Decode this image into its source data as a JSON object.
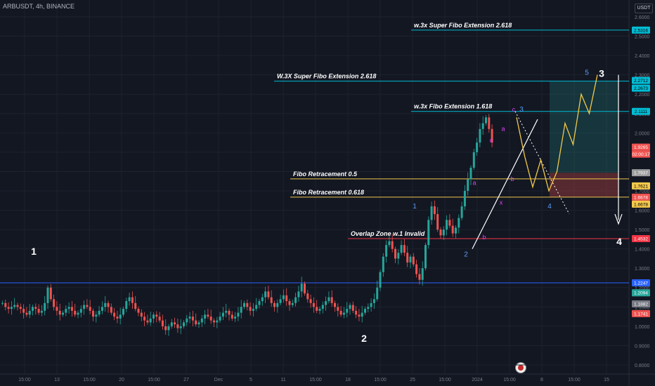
{
  "header": {
    "symbol": "ARBUSDT, 4h, BINANCE",
    "currency": "USDT"
  },
  "colors": {
    "background": "#131722",
    "up": "#26a69a",
    "down": "#ef5350",
    "grid": "#1e222d",
    "axis_text": "#787b86",
    "wave_label": "#5b9cf6",
    "sub_wave": "#e040fb",
    "projection": "#f2c94c",
    "fib_line": "#00bcd4",
    "retrace_line": "#f2c94c",
    "overlap_line": "#f23645",
    "support_line": "#2962ff"
  },
  "chart_data": {
    "type": "candlestick",
    "title": "",
    "xlabel": "",
    "ylabel": "",
    "ylim": [
      0.75,
      2.7
    ],
    "y_ticks": [
      "0.8000",
      "0.9000",
      "1.0000",
      "1.1000",
      "1.2000",
      "1.3000",
      "1.4000",
      "1.5000",
      "1.6000",
      "1.7000",
      "1.8000",
      "1.9000",
      "2.0000",
      "2.1000",
      "2.2000",
      "2.3000",
      "2.4000",
      "2.5000",
      "2.6000"
    ],
    "x_ticks": [
      "15:00",
      "13",
      "15:00",
      "20",
      "15:00",
      "27",
      "Dec",
      "5",
      "11",
      "15:00",
      "18",
      "15:00",
      "25",
      "15:00",
      "2024",
      "15:00",
      "8",
      "15:00",
      "15"
    ],
    "ohlc_points": [
      1.12,
      1.1,
      1.09,
      1.1,
      1.11,
      1.1,
      1.09,
      1.07,
      1.06,
      1.08,
      1.1,
      1.09,
      1.07,
      1.08,
      1.12,
      1.2,
      1.14,
      1.1,
      1.08,
      1.06,
      1.07,
      1.09,
      1.1,
      1.08,
      1.06,
      1.07,
      1.09,
      1.11,
      1.1,
      1.08,
      1.05,
      1.06,
      1.08,
      1.1,
      1.12,
      1.1,
      1.07,
      1.05,
      1.04,
      1.06,
      1.09,
      1.13,
      1.15,
      1.12,
      1.09,
      1.07,
      1.05,
      1.03,
      1.02,
      1.04,
      1.06,
      1.05,
      1.03,
      1.0,
      0.98,
      1.0,
      1.02,
      1.01,
      0.99,
      1.0,
      1.02,
      1.04,
      1.05,
      1.03,
      1.01,
      1.02,
      1.04,
      1.06,
      1.05,
      1.03,
      1.02,
      1.03,
      1.05,
      1.07,
      1.08,
      1.06,
      1.04,
      1.05,
      1.07,
      1.1,
      1.12,
      1.1,
      1.08,
      1.09,
      1.11,
      1.13,
      1.15,
      1.18,
      1.15,
      1.12,
      1.1,
      1.12,
      1.14,
      1.16,
      1.13,
      1.11,
      1.12,
      1.15,
      1.18,
      1.22,
      1.17,
      1.14,
      1.12,
      1.1,
      1.08,
      1.09,
      1.11,
      1.13,
      1.15,
      1.12,
      1.1,
      1.08,
      1.06,
      1.07,
      1.09,
      1.11,
      1.08,
      1.06,
      1.05,
      1.07,
      1.09,
      1.1,
      1.12,
      1.14,
      1.2,
      1.28,
      1.36,
      1.42,
      1.44,
      1.4,
      1.35,
      1.38,
      1.42,
      1.38,
      1.33,
      1.36,
      1.32,
      1.27,
      1.24,
      1.3,
      1.42,
      1.55,
      1.62,
      1.58,
      1.5,
      1.47,
      1.5,
      1.55,
      1.52,
      1.48,
      1.51,
      1.56,
      1.62,
      1.7,
      1.76,
      1.82,
      1.9,
      1.95,
      2.02,
      2.05,
      2.08,
      2.02,
      1.95
    ],
    "series": [
      {
        "name": "Projection",
        "points": [
          [
            0,
            2.08
          ],
          [
            1,
            1.88
          ],
          [
            2,
            1.72
          ],
          [
            3,
            1.86
          ],
          [
            4,
            1.7
          ],
          [
            5,
            1.8
          ],
          [
            6,
            2.05
          ],
          [
            7,
            1.94
          ],
          [
            8,
            2.2
          ],
          [
            9,
            2.1
          ],
          [
            10,
            2.3
          ]
        ]
      }
    ],
    "wave_labels": [
      {
        "text": "1",
        "price": 1.37
      },
      {
        "text": "2",
        "price": 0.92
      },
      {
        "text": "1",
        "price": 1.61
      },
      {
        "text": "2",
        "price": 1.36
      },
      {
        "text": "3",
        "price": 2.11
      },
      {
        "text": "4",
        "price": 1.61
      },
      {
        "text": "5",
        "price": 2.3
      },
      {
        "text": "3",
        "price": 2.29
      },
      {
        "text": "4",
        "price": 1.42
      }
    ],
    "sub_wave_labels": [
      {
        "text": "a",
        "price": 1.73
      },
      {
        "text": "b",
        "price": 1.45
      },
      {
        "text": "c",
        "price": 1.95
      },
      {
        "text": "a",
        "price": 2.01
      },
      {
        "text": "b",
        "price": 1.75
      },
      {
        "text": "c",
        "price": 2.11
      },
      {
        "text": "x",
        "price": 1.63
      }
    ],
    "horizontal_lines": [
      {
        "label": "w.3x Super Fibo Extension 2.618",
        "price": 2.5316
      },
      {
        "label": "W.3X Super Fibo Extension 2.618",
        "price": 2.2673
      },
      {
        "label": "w.3x Fibo Extension 1.618",
        "price": 2.1111
      },
      {
        "label": "Fibo Retracement 0.5",
        "price": 1.7621
      },
      {
        "label": "Fibo Retracement 0.618",
        "price": 1.6678
      },
      {
        "label": "Overlap Zone w.1 Invalid",
        "price": 1.4532
      },
      {
        "label": "",
        "price": 1.2247
      }
    ],
    "price_tags": [
      {
        "text": "2.5316",
        "price": 2.5316
      },
      {
        "text": "2.2712",
        "price": 2.2712
      },
      {
        "text": "2.2673",
        "price": 2.2673
      },
      {
        "text": "2.1111",
        "price": 2.1111
      },
      {
        "text": "1.9265",
        "price": 1.9265
      },
      {
        "text": "02:00:17",
        "price": 1.9265
      },
      {
        "text": "1.7937",
        "price": 1.7937
      },
      {
        "text": "1.7621",
        "price": 1.7621
      },
      {
        "text": "1.6678",
        "price": 1.6678
      },
      {
        "text": "1.6678",
        "price": 1.6678
      },
      {
        "text": "1.4532",
        "price": 1.4532
      },
      {
        "text": "1.2247",
        "price": 1.2247
      },
      {
        "text": "1.2094",
        "price": 1.2094
      },
      {
        "text": "1.1882",
        "price": 1.1882
      },
      {
        "text": "1.1741",
        "price": 1.1741
      }
    ]
  }
}
